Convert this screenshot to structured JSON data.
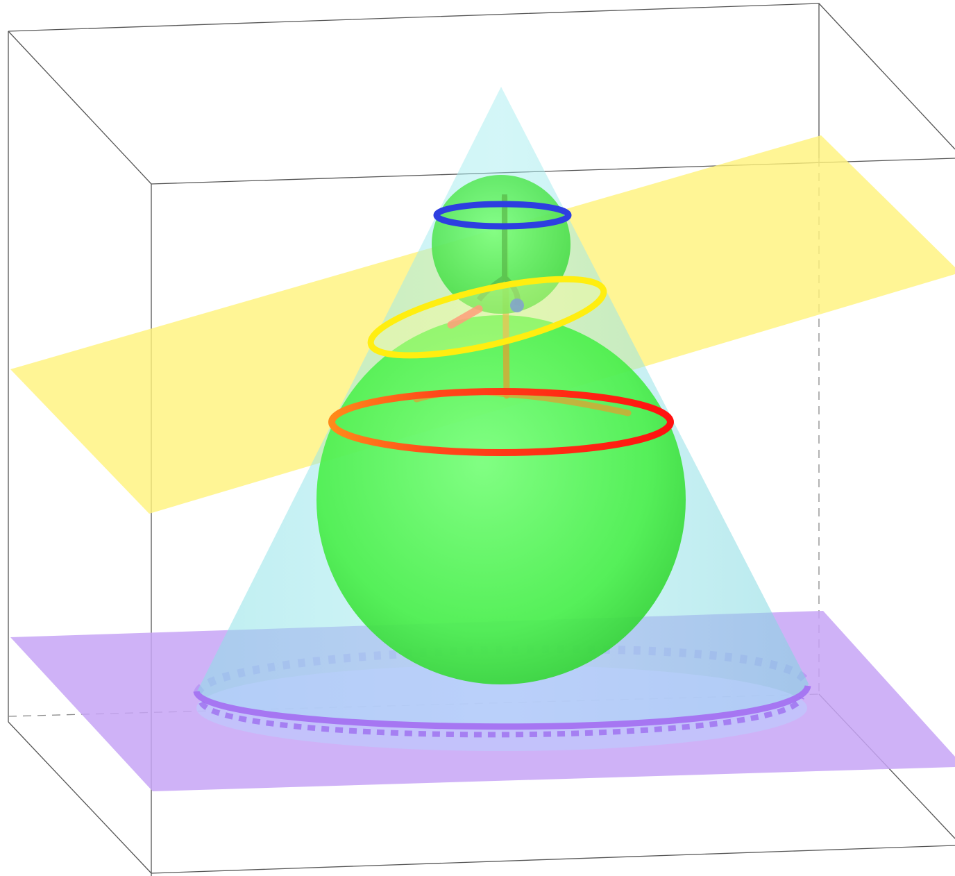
{
  "scene": {
    "description_shown": false,
    "colors": {
      "background": "#ffffff",
      "box_edge": "#555555",
      "box_hidden_edge": "#888888",
      "cone_fill": "#7fd8e0",
      "sphere_fill": "#4df04d",
      "cutting_plane": "#fff27a",
      "base_plane": "#c9a6f7",
      "base_ellipse": "#b48cf5",
      "small_sphere_tangent_circle": "#2d3fe0",
      "large_sphere_tangent_circle": "#ff1a1a",
      "conic_section": "#ffef1a",
      "axis_segment": "#e09a2a",
      "focus_point_red": "#ff6a6a",
      "focus_point_blue": "#3f6ef0"
    },
    "objects": [
      {
        "name": "bounding-box",
        "kind": "wireframe box"
      },
      {
        "name": "cone",
        "kind": "cone"
      },
      {
        "name": "small-sphere",
        "kind": "sphere"
      },
      {
        "name": "large-sphere",
        "kind": "sphere"
      },
      {
        "name": "cutting-plane",
        "kind": "plane"
      },
      {
        "name": "base-plane",
        "kind": "plane"
      },
      {
        "name": "blue-circle",
        "kind": "circle"
      },
      {
        "name": "red-circle",
        "kind": "circle"
      },
      {
        "name": "yellow-ellipse",
        "kind": "conic section"
      },
      {
        "name": "purple-base-circle",
        "kind": "circle"
      }
    ]
  }
}
